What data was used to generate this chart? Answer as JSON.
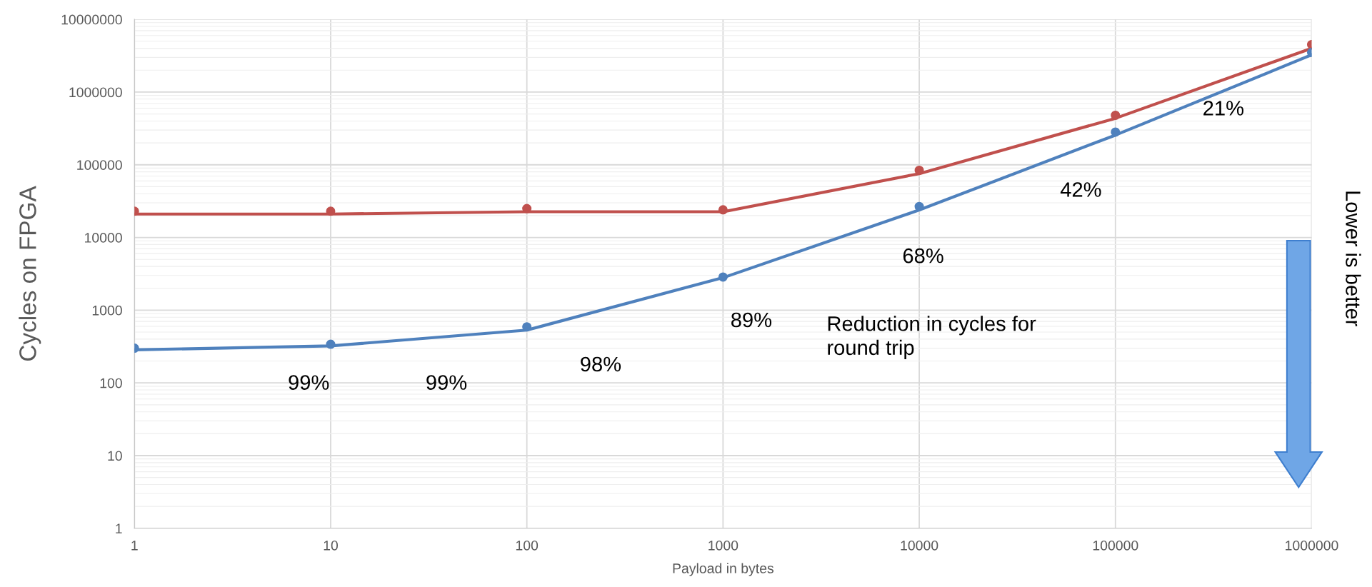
{
  "chart_data": {
    "type": "line",
    "xlabel": "Payload in bytes",
    "ylabel": "Cycles on FPGA",
    "x": [
      1,
      10,
      100,
      1000,
      10000,
      100000,
      1000000
    ],
    "series": [
      {
        "type": "scatter",
        "marker": "circle",
        "color": "#c0504d",
        "values": [
          23000,
          23000,
          25000,
          24000,
          84000,
          480000,
          4500000
        ]
      },
      {
        "type": "scatter",
        "marker": "circle",
        "color": "#4f81bd",
        "values": [
          300,
          340,
          590,
          2860,
          26700,
          282000,
          3500000
        ]
      },
      {
        "color": "#c0504d",
        "values": [
          21000,
          21000,
          22600,
          22600,
          75500,
          436000,
          4000000
        ]
      },
      {
        "color": "#4f81bd",
        "values": [
          285,
          323,
          532,
          2800,
          23900,
          256000,
          3250000
        ]
      }
    ],
    "log": "xy",
    "xlim": [
      1,
      1000000
    ],
    "ylim": [
      1,
      10000000
    ],
    "xticks": [
      1,
      10,
      100,
      1000,
      10000,
      100000,
      1000000
    ],
    "yticks": [
      1,
      10,
      100,
      1000,
      10000,
      100000,
      1000000,
      10000000
    ],
    "grid": true,
    "marker": "none",
    "line_style": "solid",
    "annotations": [
      "99%",
      "99%",
      "98%",
      "89%",
      "68%",
      "42%",
      "21%",
      "Reduction in cycles for\nround trip",
      "Lower is better"
    ]
  }
}
